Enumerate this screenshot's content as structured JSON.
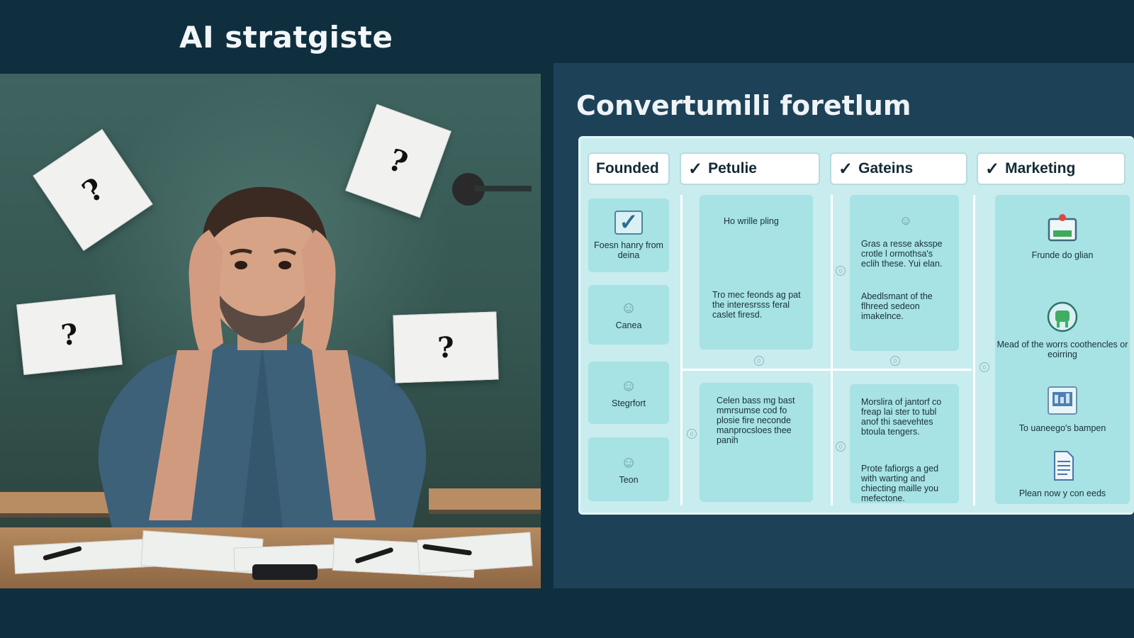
{
  "slide_title": "AI stratgiste",
  "photo": {
    "paper_marks": [
      "?",
      "?",
      "?",
      "?"
    ]
  },
  "board": {
    "title": "Convertumili foretlum",
    "columns": [
      {
        "label": "Founded",
        "checked": false
      },
      {
        "label": "Petulie",
        "checked": true
      },
      {
        "label": "Gateins",
        "checked": true
      },
      {
        "label": "Marketing",
        "checked": true
      }
    ],
    "founded_cards": [
      {
        "icon": "check-box-icon",
        "text": "Foesn hanry from deina"
      },
      {
        "icon": "person-icon",
        "text": "Canea"
      },
      {
        "icon": "person-icon",
        "text": "Stegrfort"
      },
      {
        "icon": "person-icon",
        "text": "Teon"
      }
    ],
    "petulie_cards": [
      {
        "top": "Ho wrille pling",
        "bottom": "Tro mec feonds ag pat the interesrsss feral caslet firesd."
      },
      {
        "top": "Celen bass mg bast mmrsumse cod fo plosie fire neconde manprocsloes thee panih",
        "bottom": ""
      }
    ],
    "gateins_cards": [
      {
        "top": "Gras a resse aksspe crotle l ormothsa's eclih these. Yui elan.",
        "bottom": "Abedlsmant of the flhreed sedeon imakelnce."
      },
      {
        "top": "Morslira of jantorf co freap lai ster to tubl anof thi saevehtes btoula tengers.",
        "bottom": "Prote fafiorgs a ged with warting and chiecting maille you mefectone."
      }
    ],
    "marketing_items": [
      {
        "icon": "dashboard-icon",
        "text": "Frunde do glian"
      },
      {
        "icon": "robot-icon",
        "text": "Mead of the worrs coothencles or eoirring"
      },
      {
        "icon": "chart-window-icon",
        "text": "To uaneego's bampen"
      },
      {
        "icon": "document-icon",
        "text": "Plean now y con eeds"
      }
    ],
    "dot_marks": [
      "0",
      "0",
      "0",
      "0",
      "0",
      "0",
      "0"
    ]
  }
}
